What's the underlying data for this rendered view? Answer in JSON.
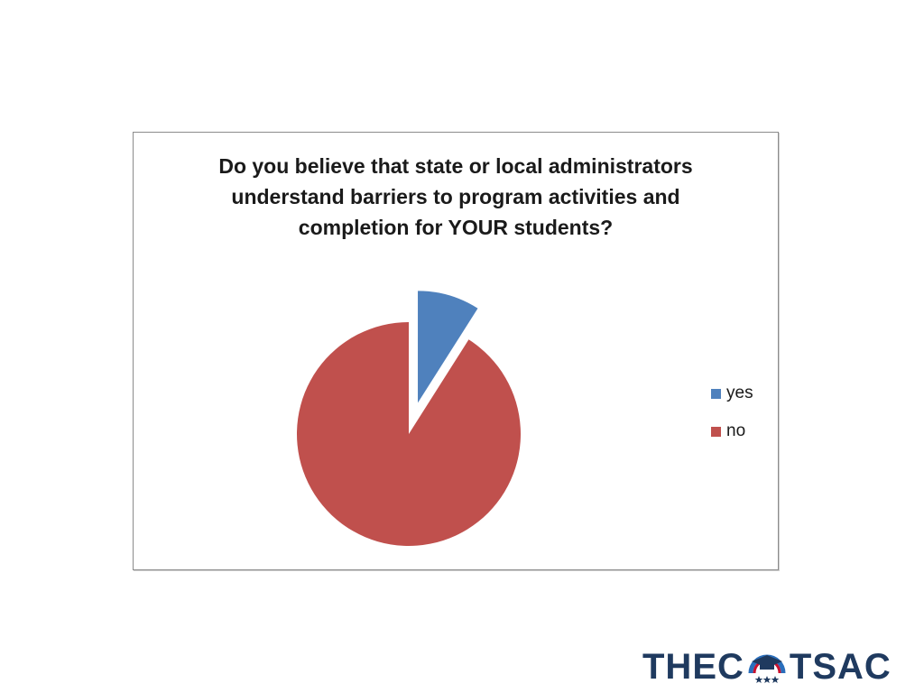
{
  "chart_data": {
    "type": "pie",
    "title_lines": [
      "Do you believe that state or local administrators",
      "understand barriers to program activities and",
      "completion for YOUR students?"
    ],
    "slices": [
      {
        "label": "yes",
        "value": 9,
        "color": "#4f81bd",
        "exploded": true
      },
      {
        "label": "no",
        "value": 91,
        "color": "#c0504d",
        "exploded": false
      }
    ],
    "start_angle_deg": 0,
    "legend_position": "right"
  },
  "logo": {
    "left_text": "THEC",
    "right_text": "TSAC",
    "text_color": "#1f3a5f",
    "accent_red": "#c8102e",
    "accent_blue": "#2a6ebb"
  }
}
